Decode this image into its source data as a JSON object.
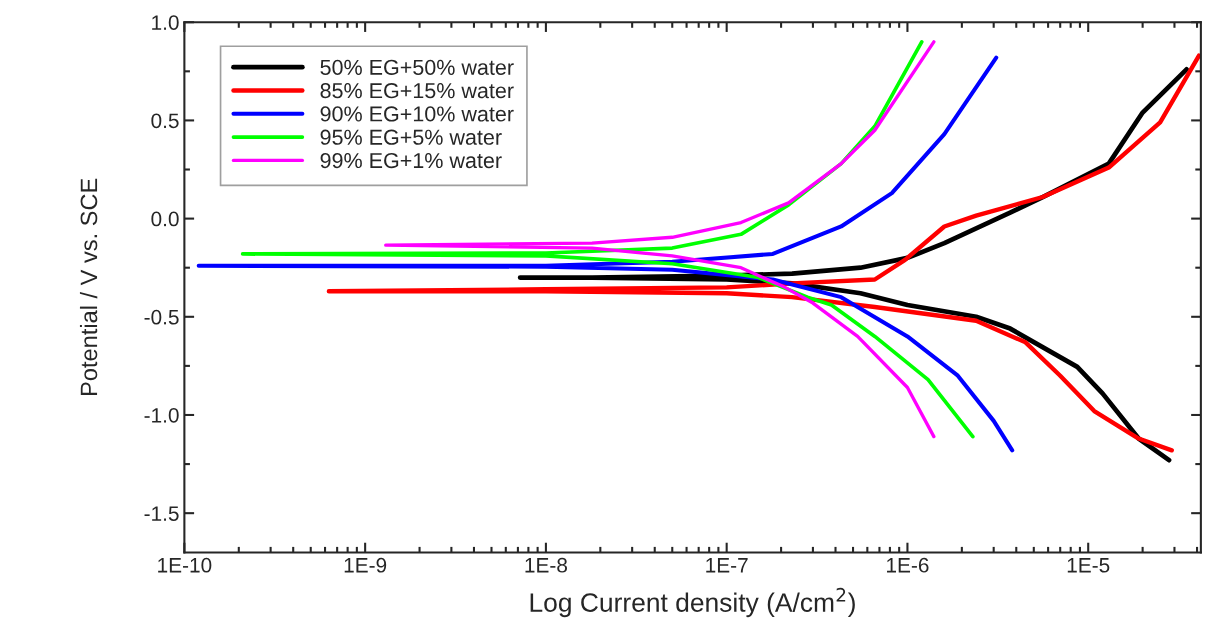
{
  "chart_data": {
    "type": "line",
    "xlabel": "Log Current density (A/cm$^{2}$)",
    "ylabel": "Potential / V vs. SCE",
    "log": "x",
    "xlim": [
      1e-10,
      4.2e-05
    ],
    "ylim": [
      -1.7,
      1.0
    ],
    "xticks": [
      {
        "value": 1e-10,
        "label": "1E-10"
      },
      {
        "value": 1e-09,
        "label": "1E-9"
      },
      {
        "value": 1e-08,
        "label": "1E-8"
      },
      {
        "value": 1e-07,
        "label": "1E-7"
      },
      {
        "value": 1e-06,
        "label": "1E-6"
      },
      {
        "value": 1e-05,
        "label": "1E-5"
      }
    ],
    "yticks": [
      {
        "value": -1.5,
        "label": "-1.5"
      },
      {
        "value": -1.0,
        "label": "-1.0"
      },
      {
        "value": -0.5,
        "label": "-0.5"
      },
      {
        "value": 0.0,
        "label": "0.0"
      },
      {
        "value": 0.5,
        "label": "0.5"
      },
      {
        "value": 1.0,
        "label": "1.0"
      }
    ],
    "grid": false,
    "legend": "top left",
    "line_style": "solid",
    "marker": "none",
    "series": [
      {
        "name": "50% EG+50% water",
        "color": "#000000",
        "x": [
          2.8e-05,
          1.9e-05,
          1.2e-05,
          8.7e-06,
          3.7e-06,
          2.4e-06,
          1e-06,
          5.5e-07,
          2.3e-07,
          1e-07,
          1.8e-08,
          7.2e-09,
          1.8e-08,
          1e-07,
          2.3e-07,
          5.5e-07,
          1e-06,
          1.6e-06,
          3.7e-06,
          5.6e-06,
          1.3e-05,
          2e-05,
          3.5e-05
        ],
        "values": [
          -1.23,
          -1.12,
          -0.89,
          -0.755,
          -0.56,
          -0.5,
          -0.44,
          -0.38,
          -0.33,
          -0.31,
          -0.3,
          -0.3,
          -0.3,
          -0.29,
          -0.28,
          -0.25,
          -0.2,
          -0.125,
          0.03,
          0.11,
          0.28,
          0.54,
          0.76
        ]
      },
      {
        "name": "85% EG+15% water",
        "color": "#ff0000",
        "x": [
          2.9e-05,
          1.9e-05,
          1.08e-05,
          7e-06,
          4.5e-06,
          2.4e-06,
          6.6e-07,
          2.3e-07,
          1e-07,
          1e-08,
          6.3e-10,
          1e-08,
          1e-07,
          2.3e-07,
          6.6e-07,
          9.7e-07,
          1.6e-06,
          2.4e-06,
          5.6e-06,
          1.3e-05,
          2.5e-05,
          4.1e-05
        ],
        "values": [
          -1.18,
          -1.12,
          -0.98,
          -0.8,
          -0.63,
          -0.52,
          -0.45,
          -0.4,
          -0.38,
          -0.37,
          -0.37,
          -0.36,
          -0.35,
          -0.33,
          -0.31,
          -0.21,
          -0.04,
          0.015,
          0.11,
          0.26,
          0.49,
          0.83
        ]
      },
      {
        "name": "90% EG+10% water",
        "color": "#0000ff",
        "x": [
          3.8e-06,
          3e-06,
          1.9e-06,
          1e-06,
          5.3e-07,
          4.3e-07,
          1.8e-07,
          5e-08,
          1e-08,
          1.2e-10,
          1e-08,
          5e-08,
          1.8e-07,
          4.3e-07,
          8.2e-07,
          1.6e-06,
          3.1e-06
        ],
        "values": [
          -1.18,
          -1.03,
          -0.8,
          -0.6,
          -0.45,
          -0.4,
          -0.31,
          -0.26,
          -0.245,
          -0.24,
          -0.24,
          -0.22,
          -0.18,
          -0.04,
          0.13,
          0.43,
          0.82
        ]
      },
      {
        "name": "95% EG+5% water",
        "color": "#00ff00",
        "x": [
          2.3e-06,
          1.3e-06,
          6.6e-07,
          3.8e-07,
          2.8e-07,
          1.5e-07,
          5e-08,
          1e-08,
          2.1e-10,
          1e-08,
          5e-08,
          1.2e-07,
          2.2e-07,
          4.3e-07,
          6.6e-07,
          1.2e-06
        ],
        "values": [
          -1.11,
          -0.82,
          -0.6,
          -0.44,
          -0.4,
          -0.3,
          -0.23,
          -0.19,
          -0.18,
          -0.175,
          -0.15,
          -0.08,
          0.07,
          0.28,
          0.47,
          0.9
        ]
      },
      {
        "name": "99% EG+1% water",
        "color": "#ff00ff",
        "x": [
          1.4e-06,
          1e-06,
          5.3e-07,
          3e-07,
          2.1e-07,
          1.2e-07,
          5e-08,
          1.8e-08,
          1.3e-09,
          1.8e-08,
          5e-08,
          1.2e-07,
          2.2e-07,
          4.3e-07,
          6.6e-07,
          1.4e-06
        ],
        "values": [
          -1.11,
          -0.86,
          -0.6,
          -0.43,
          -0.35,
          -0.25,
          -0.19,
          -0.15,
          -0.135,
          -0.125,
          -0.095,
          -0.02,
          0.08,
          0.28,
          0.45,
          0.9
        ]
      }
    ]
  }
}
